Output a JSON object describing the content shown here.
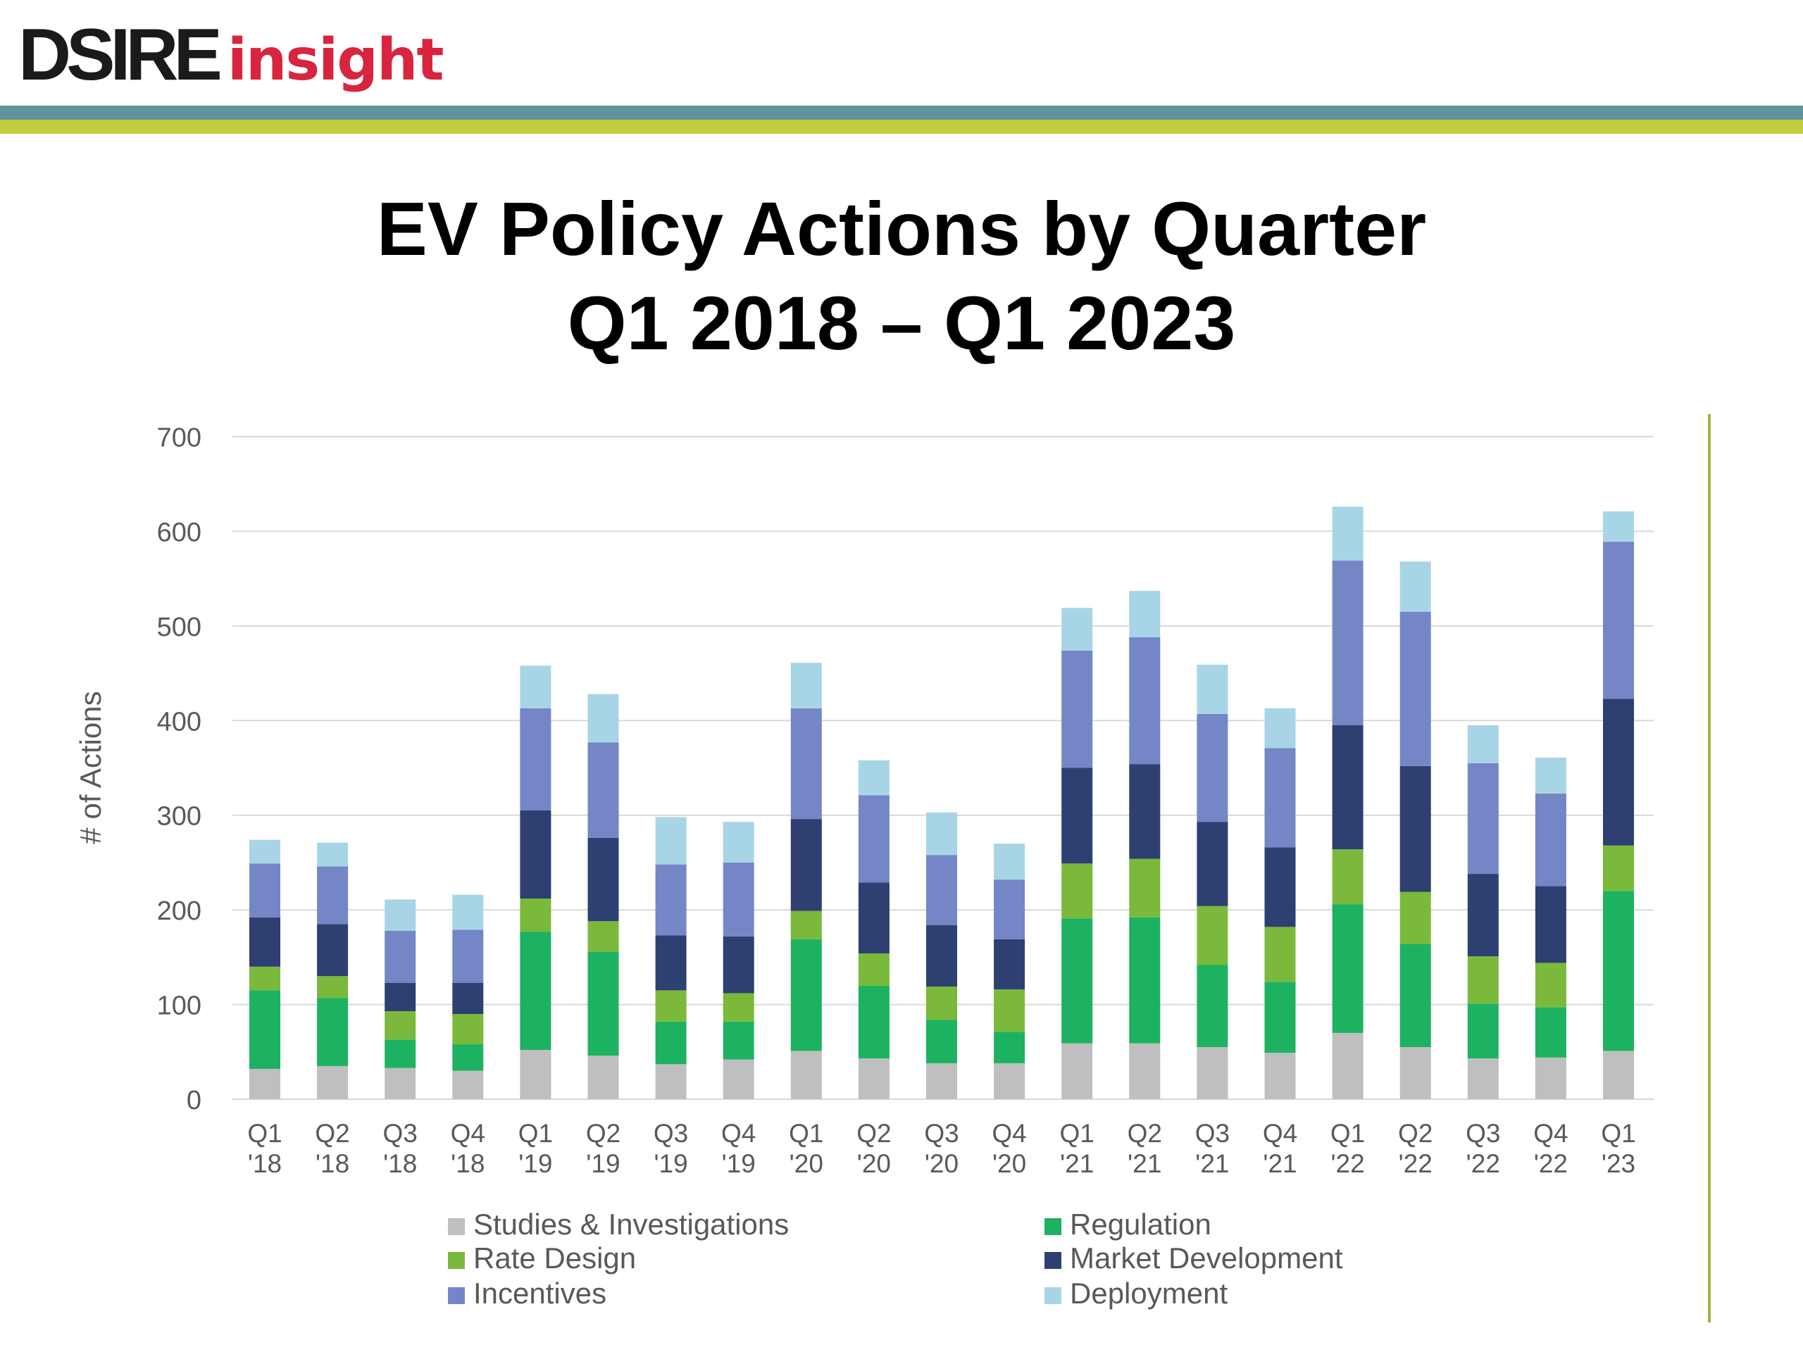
{
  "header": {
    "logo_part1": "DSIRE",
    "logo_part2": "insight"
  },
  "colors": {
    "logo_red": "#d8243f",
    "band_teal": "#5f949c",
    "band_lime": "#c3cc3f",
    "divider": "#9fb54a",
    "grid": "#d9d9d9",
    "text_gray": "#595959"
  },
  "title": {
    "line1": "EV Policy Actions by Quarter",
    "line2": "Q1 2018 – Q1 2023"
  },
  "chart_data": {
    "type": "bar",
    "stacked": true,
    "ylabel": "# of Actions",
    "xlabel": "",
    "ylim": [
      0,
      700
    ],
    "yticks": [
      0,
      100,
      200,
      300,
      400,
      500,
      600,
      700
    ],
    "grid": true,
    "legend_position": "bottom",
    "categories": [
      [
        "Q1",
        "'18"
      ],
      [
        "Q2",
        "'18"
      ],
      [
        "Q3",
        "'18"
      ],
      [
        "Q4",
        "'18"
      ],
      [
        "Q1",
        "'19"
      ],
      [
        "Q2",
        "'19"
      ],
      [
        "Q3",
        "'19"
      ],
      [
        "Q4",
        "'19"
      ],
      [
        "Q1",
        "'20"
      ],
      [
        "Q2",
        "'20"
      ],
      [
        "Q3",
        "'20"
      ],
      [
        "Q4",
        "'20"
      ],
      [
        "Q1",
        "'21"
      ],
      [
        "Q2",
        "'21"
      ],
      [
        "Q3",
        "'21"
      ],
      [
        "Q4",
        "'21"
      ],
      [
        "Q1",
        "'22"
      ],
      [
        "Q2",
        "'22"
      ],
      [
        "Q3",
        "'22"
      ],
      [
        "Q4",
        "'22"
      ],
      [
        "Q1",
        "'23"
      ]
    ],
    "series": [
      {
        "name": "Studies & Investigations",
        "color": "#bfbfbf",
        "values": [
          32,
          35,
          33,
          30,
          52,
          46,
          37,
          42,
          51,
          43,
          38,
          38,
          59,
          59,
          55,
          49,
          70,
          55,
          43,
          44,
          51
        ]
      },
      {
        "name": "Regulation",
        "color": "#1db261",
        "values": [
          83,
          72,
          30,
          28,
          125,
          110,
          45,
          40,
          118,
          77,
          46,
          33,
          132,
          133,
          87,
          75,
          136,
          109,
          58,
          53,
          169
        ]
      },
      {
        "name": "Rate Design",
        "color": "#7ab93b",
        "values": [
          25,
          23,
          30,
          32,
          35,
          32,
          33,
          30,
          30,
          34,
          35,
          45,
          58,
          62,
          62,
          58,
          58,
          55,
          50,
          47,
          48
        ]
      },
      {
        "name": "Market Development",
        "color": "#2e3f72",
        "values": [
          52,
          55,
          30,
          33,
          93,
          88,
          58,
          60,
          97,
          75,
          65,
          53,
          101,
          100,
          89,
          84,
          131,
          133,
          87,
          81,
          155
        ]
      },
      {
        "name": "Incentives",
        "color": "#7486c5",
        "values": [
          57,
          61,
          55,
          56,
          108,
          101,
          75,
          78,
          117,
          92,
          74,
          63,
          124,
          134,
          114,
          105,
          174,
          163,
          117,
          98,
          166
        ]
      },
      {
        "name": "Deployment",
        "color": "#a8d5e6",
        "values": [
          25,
          25,
          33,
          37,
          45,
          51,
          50,
          43,
          48,
          37,
          45,
          38,
          45,
          49,
          52,
          42,
          57,
          53,
          40,
          38,
          32
        ]
      }
    ]
  }
}
